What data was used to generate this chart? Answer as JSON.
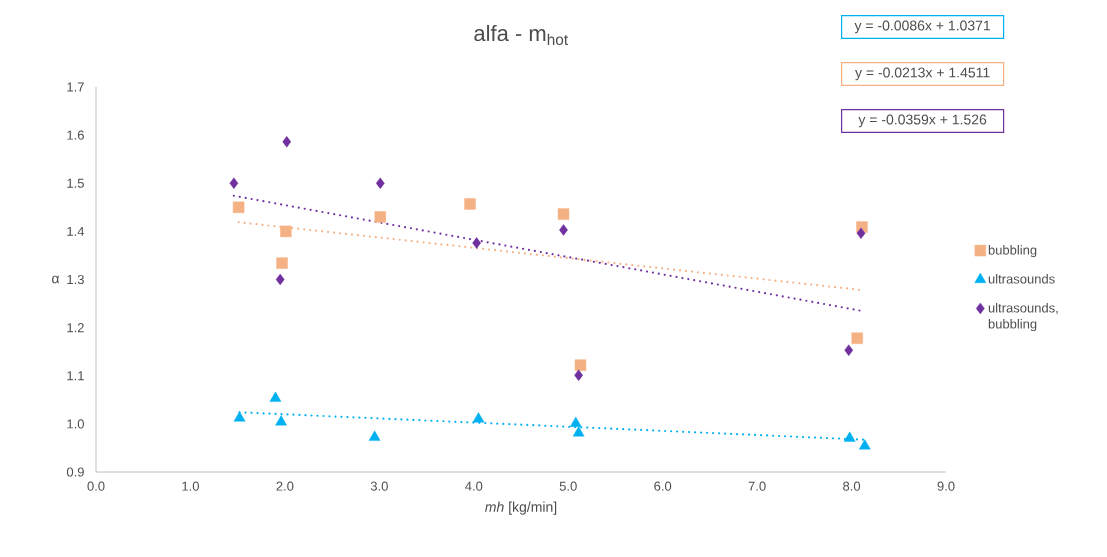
{
  "chart_data": {
    "type": "scatter",
    "title": "alfa - m$_{hot}$",
    "xlabel": "*mh* [kg/min]",
    "ylabel": "α",
    "xlim": [
      0,
      9
    ],
    "ylim": [
      0.9,
      1.7
    ],
    "xticks": [
      {
        "value": 0,
        "label": "0.0"
      },
      {
        "value": 1,
        "label": "1.0"
      },
      {
        "value": 2,
        "label": "2.0"
      },
      {
        "value": 3,
        "label": "3.0"
      },
      {
        "value": 4,
        "label": "4.0"
      },
      {
        "value": 5,
        "label": "5.0"
      },
      {
        "value": 6,
        "label": "6.0"
      },
      {
        "value": 7,
        "label": "7.0"
      },
      {
        "value": 8,
        "label": "8.0"
      },
      {
        "value": 9,
        "label": "9.0"
      }
    ],
    "yticks": [
      0.9,
      {
        "value": 1,
        "label": "1.0"
      },
      1.1,
      1.2,
      1.3,
      1.4,
      1.5,
      1.6,
      1.7
    ],
    "legend": "right",
    "annotations": [
      "y = -0.0086x + 1.0371",
      "y = -0.0213x + 1.4511",
      "y = -0.0359x + 1.526"
    ],
    "series": [
      {
        "name": "bubbling",
        "color": "#f4b183",
        "marker": "square",
        "x": [
          1.51,
          2.01,
          1.97,
          3.01,
          3.96,
          4.95,
          5.13,
          8.11,
          8.06
        ],
        "values": [
          1.45,
          1.4,
          1.334,
          1.43,
          1.457,
          1.436,
          1.122,
          1.409,
          1.178
        ]
      },
      {
        "name": "ultrasounds",
        "color": "#00b0f0",
        "marker": "triangle",
        "x": [
          1.52,
          1.9,
          1.96,
          2.95,
          4.05,
          5.08,
          5.11,
          7.98,
          8.14
        ],
        "values": [
          1.012,
          1.053,
          1.004,
          0.972,
          1.01,
          1.001,
          0.981,
          0.97,
          0.954
        ]
      },
      {
        "name": "ultrasounds, bubbling",
        "color": "#7030a0",
        "marker": "diamond",
        "x": [
          1.46,
          2.02,
          3.01,
          1.95,
          4.03,
          4.95,
          8.1,
          7.97,
          5.11
        ],
        "values": [
          1.5,
          1.586,
          1.5,
          1.3,
          1.376,
          1.403,
          1.396,
          1.153,
          1.101
        ]
      },
      {
        "type": "line",
        "color": "#00b0f0",
        "marker": "none",
        "line_style": "dotted",
        "x": [
          1.52,
          8.14
        ],
        "values": [
          1.024,
          0.967
        ]
      },
      {
        "type": "line",
        "color": "#f4b183",
        "marker": "none",
        "line_style": "dotted",
        "x": [
          1.51,
          8.11
        ],
        "values": [
          1.419,
          1.278
        ]
      },
      {
        "type": "line",
        "color": "#7030a0",
        "marker": "none",
        "line_style": "dotted",
        "x": [
          1.46,
          8.1
        ],
        "values": [
          1.474,
          1.235
        ]
      }
    ]
  }
}
